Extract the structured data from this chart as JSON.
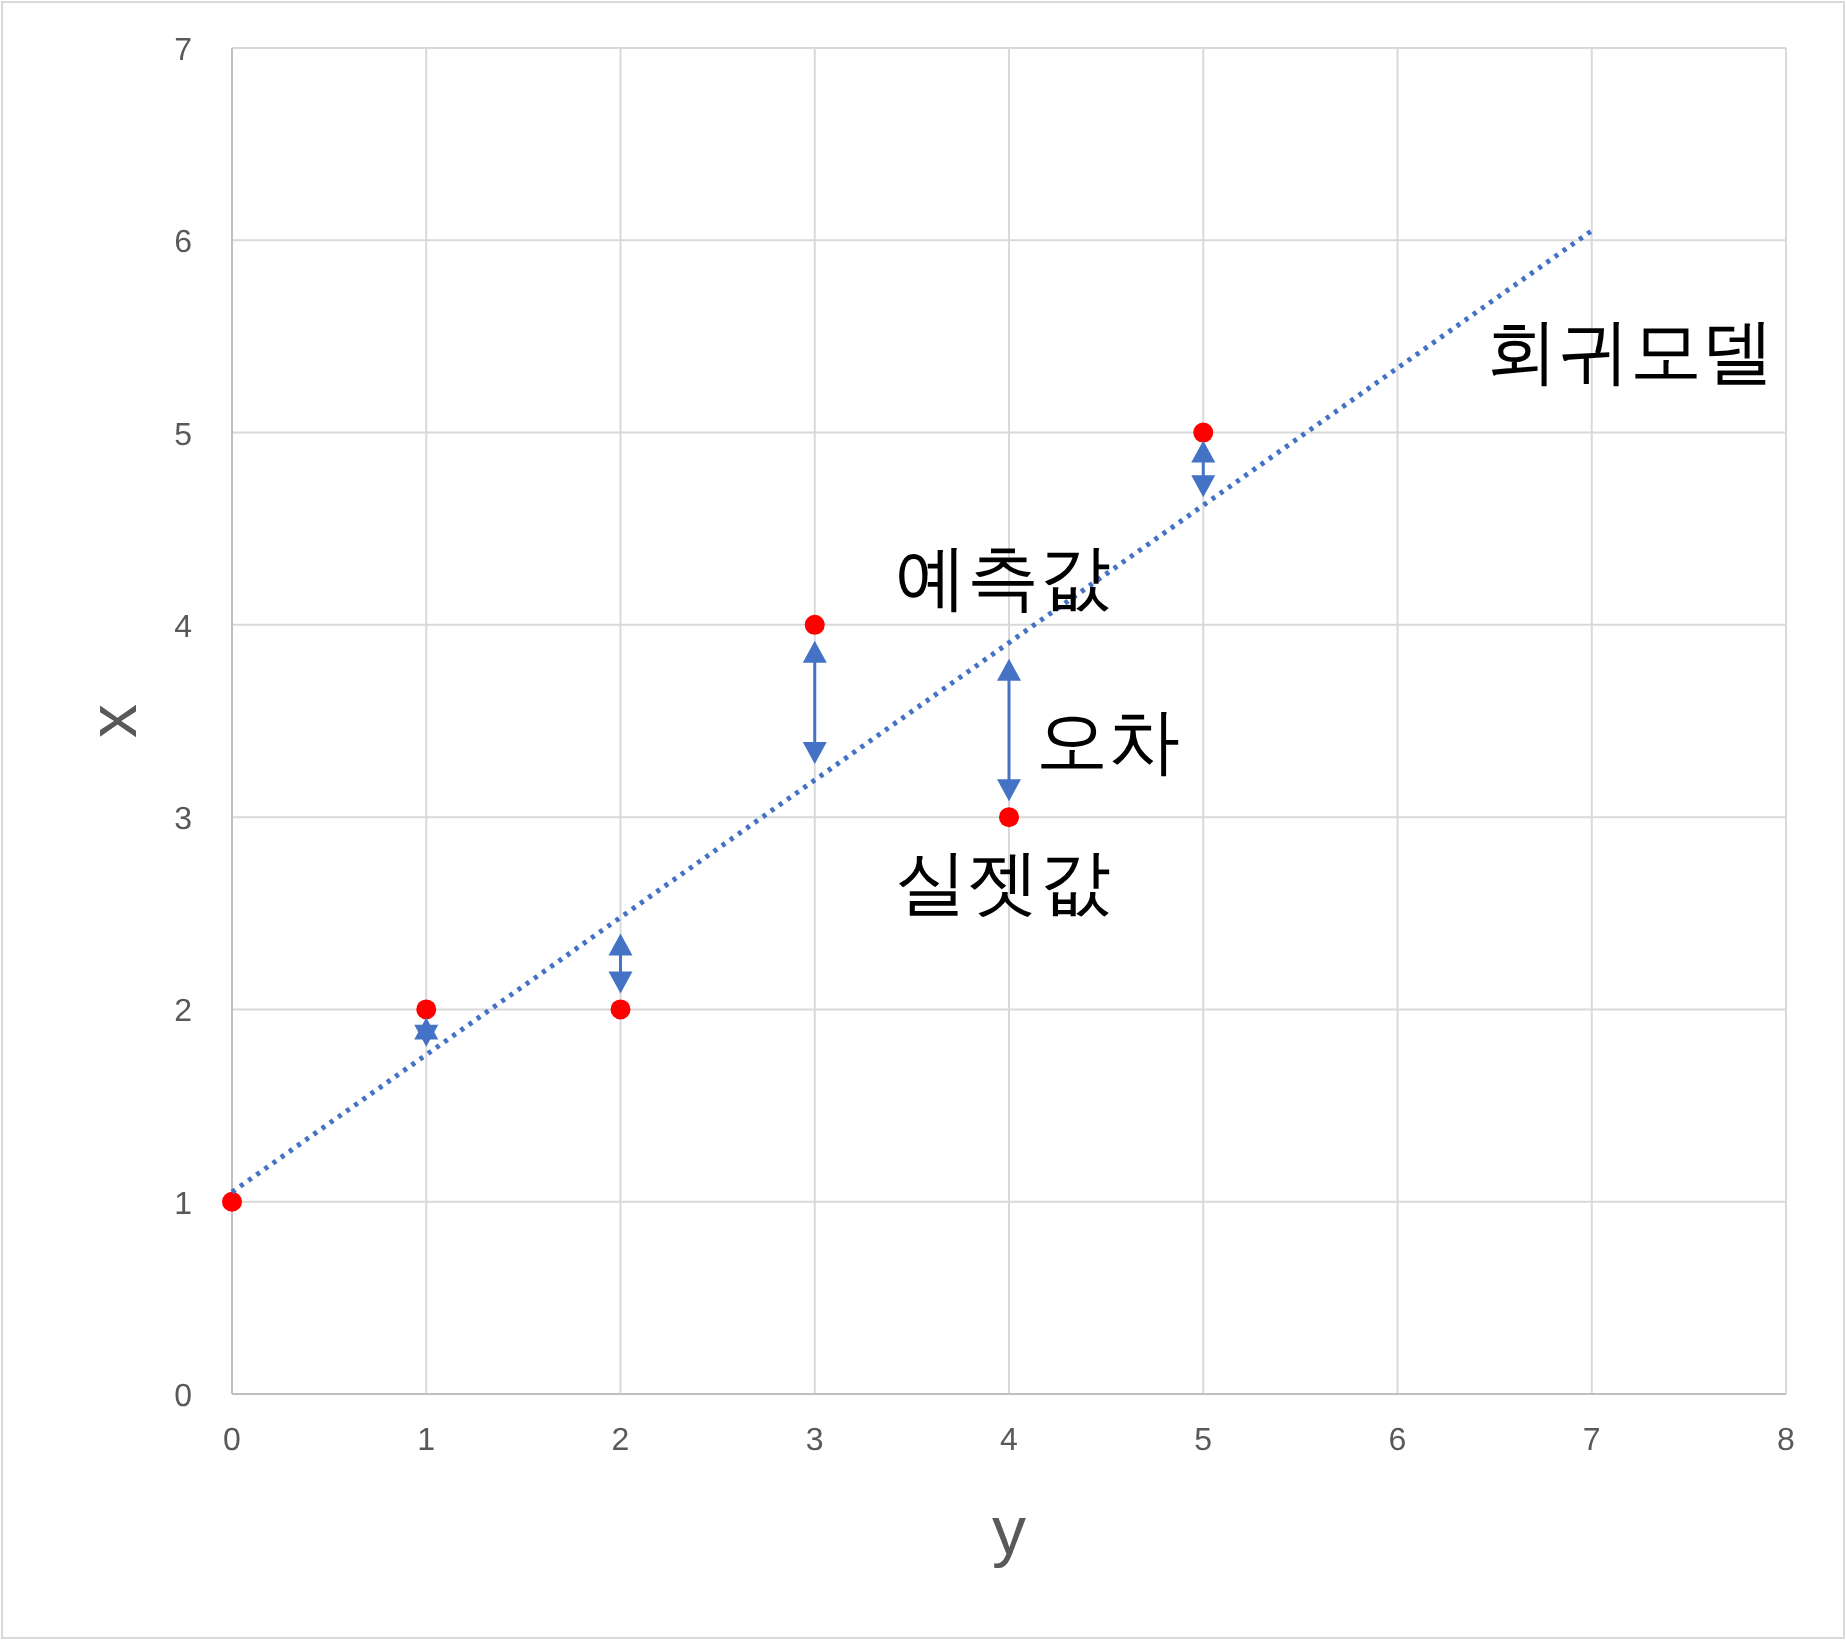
{
  "chart_data": {
    "type": "scatter",
    "xlabel": "y",
    "ylabel": "x",
    "xlim": [
      0,
      8
    ],
    "ylim": [
      0,
      7
    ],
    "xticks": [
      0,
      1,
      2,
      3,
      4,
      5,
      6,
      7,
      8
    ],
    "yticks": [
      0,
      1,
      2,
      3,
      4,
      5,
      6,
      7
    ],
    "grid": true,
    "series": [
      {
        "color": "#ff0000",
        "marker": "circle",
        "x": [
          0,
          1,
          2,
          3,
          4,
          5
        ],
        "values": [
          1,
          2,
          2,
          4,
          3,
          5
        ]
      },
      {
        "type": "line",
        "color": "#4472c4",
        "line_style": "dotted",
        "marker": "none",
        "x": [
          0,
          7
        ],
        "values": [
          1.05,
          6.05
        ]
      }
    ],
    "annotations": [
      "회귀모델",
      {
        "text": "예측값",
        "x": 4,
        "y": 3.91
      },
      "오차",
      {
        "text": "실젯값",
        "x": 4,
        "y": 3
      }
    ]
  }
}
